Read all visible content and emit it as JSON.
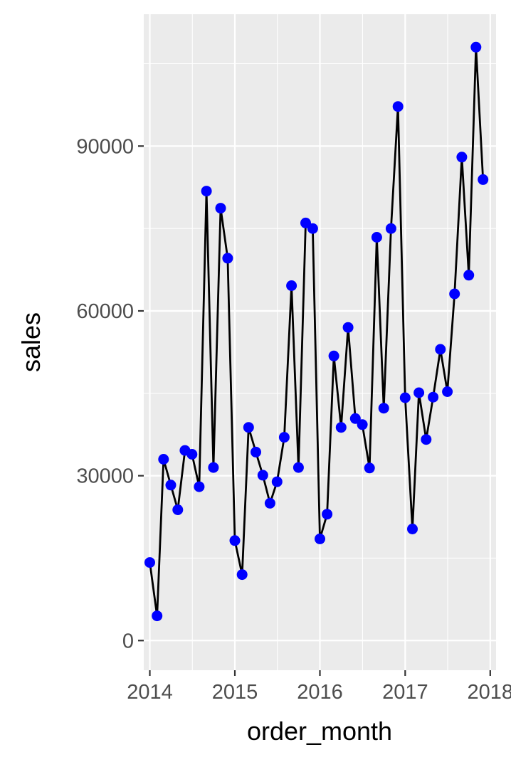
{
  "chart_data": {
    "type": "line",
    "title": "",
    "xlabel": "order_month",
    "ylabel": "sales",
    "x_tick_labels": [
      "2014",
      "2015",
      "2016",
      "2017",
      "2018"
    ],
    "y_tick_labels": [
      "0",
      "30000",
      "60000",
      "90000"
    ],
    "y_ticks": [
      0,
      30000,
      60000,
      90000
    ],
    "x_ticks": [
      "2014-01-01",
      "2015-01-01",
      "2016-01-01",
      "2017-01-01",
      "2018-01-01"
    ],
    "xlim": [
      "2013-12-06",
      "2018-01-26"
    ],
    "ylim": [
      -5400,
      114000
    ],
    "grid": true,
    "background": "#EBEBEB",
    "line_color": "#000000",
    "point_color": "#0000FF",
    "series": [
      {
        "x": [
          "2014-01-01",
          "2014-02-01",
          "2014-03-01",
          "2014-04-01",
          "2014-05-01",
          "2014-06-01",
          "2014-07-01",
          "2014-08-01",
          "2014-09-01",
          "2014-10-01",
          "2014-11-01",
          "2014-12-01",
          "2015-01-01",
          "2015-02-01",
          "2015-03-01",
          "2015-04-01",
          "2015-05-01",
          "2015-06-01",
          "2015-07-01",
          "2015-08-01",
          "2015-09-01",
          "2015-10-01",
          "2015-11-01",
          "2015-12-01",
          "2016-01-01",
          "2016-02-01",
          "2016-03-01",
          "2016-04-01",
          "2016-05-01",
          "2016-06-01",
          "2016-07-01",
          "2016-08-01",
          "2016-09-01",
          "2016-10-01",
          "2016-11-01",
          "2016-12-01",
          "2017-01-01",
          "2017-02-01",
          "2017-03-01",
          "2017-04-01",
          "2017-05-01",
          "2017-06-01",
          "2017-07-01",
          "2017-08-01",
          "2017-09-01",
          "2017-10-01",
          "2017-11-01",
          "2017-12-01"
        ],
        "y": [
          14200,
          4500,
          33000,
          28300,
          23800,
          34600,
          33900,
          28000,
          81800,
          31500,
          78700,
          69600,
          18200,
          12000,
          38800,
          34300,
          30100,
          25000,
          28900,
          37000,
          64600,
          31500,
          76000,
          75000,
          18500,
          23000,
          51800,
          38800,
          57000,
          40400,
          39300,
          31400,
          73400,
          42300,
          75000,
          97200,
          44200,
          20300,
          45100,
          36600,
          44300,
          53000,
          45300,
          63100,
          88000,
          66500,
          108000,
          83900
        ]
      }
    ]
  }
}
